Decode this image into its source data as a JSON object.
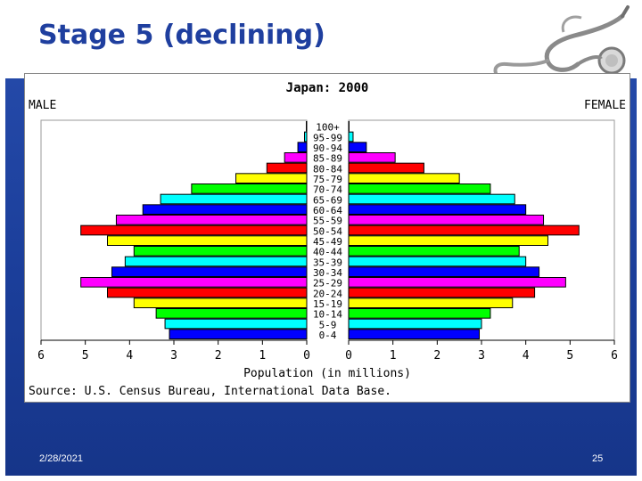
{
  "slide": {
    "title": "Stage 5 (declining)",
    "date": "2/28/2021",
    "page_number": "25"
  },
  "colors": {
    "title": "#1f3f9f",
    "panel": "#1b3e9a"
  },
  "icons": {
    "decoration": "stethoscope-icon"
  },
  "chart_data": {
    "type": "bar",
    "orientation": "horizontal",
    "subtype": "population-pyramid",
    "title": "Japan: 2000",
    "left_label": "MALE",
    "right_label": "FEMALE",
    "xlabel": "Population (in millions)",
    "source": "Source: U.S. Census Bureau, International Data Base.",
    "xlim": [
      0,
      6
    ],
    "x_ticks": [
      "6",
      "5",
      "4",
      "3",
      "2",
      "1",
      "0",
      "0",
      "1",
      "2",
      "3",
      "4",
      "5",
      "6"
    ],
    "grid": false,
    "categories": [
      "0-4",
      "5-9",
      "10-14",
      "15-19",
      "20-24",
      "25-29",
      "30-34",
      "35-39",
      "40-44",
      "45-49",
      "50-54",
      "55-59",
      "60-64",
      "65-69",
      "70-74",
      "75-79",
      "80-84",
      "85-89",
      "90-94",
      "95-99",
      "100+"
    ],
    "bar_colors": [
      "#0000ff",
      "#00ffff",
      "#00ff00",
      "#ffff00",
      "#ff0000",
      "#ff00ff",
      "#0000ff",
      "#00ffff",
      "#00ff00",
      "#ffff00",
      "#ff0000",
      "#ff00ff",
      "#0000ff",
      "#00ffff",
      "#00ff00",
      "#ffff00",
      "#ff0000",
      "#ff00ff",
      "#0000ff",
      "#00ffff",
      "#00ff00"
    ],
    "series": [
      {
        "name": "MALE",
        "values": [
          3.1,
          3.2,
          3.4,
          3.9,
          4.5,
          5.1,
          4.4,
          4.1,
          3.9,
          4.5,
          5.1,
          4.3,
          3.7,
          3.3,
          2.6,
          1.6,
          0.9,
          0.5,
          0.2,
          0.05,
          0.01
        ]
      },
      {
        "name": "FEMALE",
        "values": [
          2.95,
          3.0,
          3.2,
          3.7,
          4.2,
          4.9,
          4.3,
          4.0,
          3.85,
          4.5,
          5.2,
          4.4,
          4.0,
          3.75,
          3.2,
          2.5,
          1.7,
          1.05,
          0.4,
          0.1,
          0.01
        ]
      }
    ]
  }
}
